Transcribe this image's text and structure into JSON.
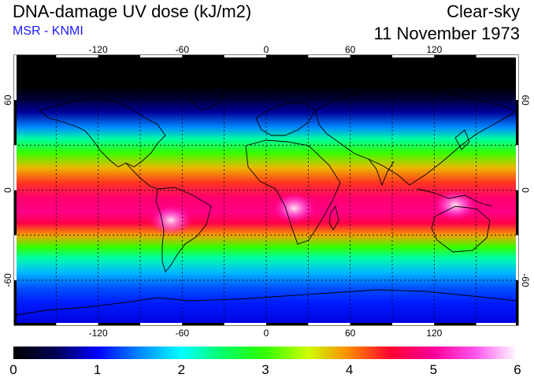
{
  "header": {
    "title": "DNA-damage UV dose (kJ/m2)",
    "subtitle": "MSR - KNMI",
    "condition": "Clear-sky",
    "date": "11 November 1973"
  },
  "map": {
    "lon_range": [
      -180,
      180
    ],
    "lat_range": [
      -90,
      90
    ],
    "lon_ticks": [
      -120,
      -60,
      0,
      60,
      120
    ],
    "lat_ticks": [
      60,
      0,
      -60
    ],
    "lon_tick_labels": [
      "-120",
      "-60",
      "0",
      "60",
      "120"
    ],
    "lat_tick_labels": [
      "60",
      "0",
      "-60"
    ],
    "gridlines": "dashed every 30 degrees",
    "value_profile": [
      {
        "lat": 90,
        "v": 0.0
      },
      {
        "lat": 70,
        "v": 0.0
      },
      {
        "lat": 62,
        "v": 0.25
      },
      {
        "lat": 52,
        "v": 0.7
      },
      {
        "lat": 42,
        "v": 1.5
      },
      {
        "lat": 34,
        "v": 2.3
      },
      {
        "lat": 25,
        "v": 3.0
      },
      {
        "lat": 15,
        "v": 3.8
      },
      {
        "lat": 5,
        "v": 4.3
      },
      {
        "lat": -5,
        "v": 4.8
      },
      {
        "lat": -15,
        "v": 4.9
      },
      {
        "lat": -22,
        "v": 4.6
      },
      {
        "lat": -30,
        "v": 3.9
      },
      {
        "lat": -38,
        "v": 3.0
      },
      {
        "lat": -45,
        "v": 2.3
      },
      {
        "lat": -55,
        "v": 1.7
      },
      {
        "lat": -65,
        "v": 1.3
      },
      {
        "lat": -75,
        "v": 1.1
      },
      {
        "lat": -90,
        "v": 0.9
      }
    ],
    "hotspots": [
      {
        "lon": -68,
        "lat": -20,
        "v": 5.8
      },
      {
        "lon": 20,
        "lat": -12,
        "v": 5.6
      },
      {
        "lon": 135,
        "lat": -10,
        "v": 5.5
      }
    ]
  },
  "colorbar": {
    "min": 0,
    "max": 6,
    "tick_labels": [
      "0",
      "1",
      "2",
      "3",
      "4",
      "5",
      "6"
    ],
    "colormap": [
      {
        "v": 0.0,
        "color": "#000000"
      },
      {
        "v": 0.5,
        "color": "#000055"
      },
      {
        "v": 1.0,
        "color": "#0000ff"
      },
      {
        "v": 1.5,
        "color": "#0088ff"
      },
      {
        "v": 2.0,
        "color": "#00ffff"
      },
      {
        "v": 2.5,
        "color": "#00ff66"
      },
      {
        "v": 3.0,
        "color": "#33ff00"
      },
      {
        "v": 3.5,
        "color": "#ccff00"
      },
      {
        "v": 4.0,
        "color": "#ff8800"
      },
      {
        "v": 4.5,
        "color": "#ff0033"
      },
      {
        "v": 5.0,
        "color": "#ff0099"
      },
      {
        "v": 5.5,
        "color": "#ff55ee"
      },
      {
        "v": 6.0,
        "color": "#ffffff"
      }
    ]
  }
}
